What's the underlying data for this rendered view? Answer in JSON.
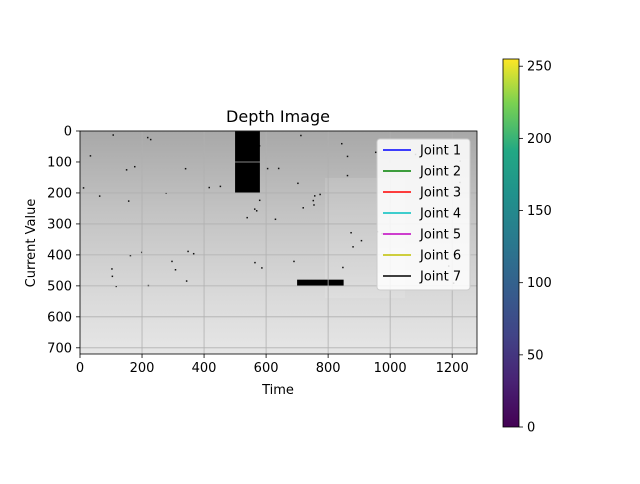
{
  "chart_data": {
    "type": "heatmap",
    "title": "Depth Image",
    "xlabel": "Time",
    "ylabel": "Current Value",
    "xlim": [
      0,
      1280
    ],
    "ylim": [
      720,
      0
    ],
    "xticks": [
      "0",
      "200",
      "400",
      "600",
      "800",
      "1000",
      "1200"
    ],
    "yticks": [
      "0",
      "100",
      "200",
      "300",
      "400",
      "500",
      "600",
      "700"
    ],
    "grid": true,
    "legend_position": "upper right",
    "series": [
      {
        "name": "Joint 1",
        "color": "#0000ff",
        "values": []
      },
      {
        "name": "Joint 2",
        "color": "#008000",
        "values": []
      },
      {
        "name": "Joint 3",
        "color": "#ff0000",
        "values": []
      },
      {
        "name": "Joint 4",
        "color": "#00bfbf",
        "values": []
      },
      {
        "name": "Joint 5",
        "color": "#bf00bf",
        "values": []
      },
      {
        "name": "Joint 6",
        "color": "#bfbf00",
        "values": []
      },
      {
        "name": "Joint 7",
        "color": "#000000",
        "values": []
      }
    ],
    "colorbar": {
      "colormap": "viridis",
      "range": [
        0,
        255
      ],
      "ticks": [
        "0",
        "50",
        "100",
        "150",
        "200",
        "250"
      ]
    },
    "image": {
      "colormap": "gray",
      "background_range": [
        "#a6a6a6",
        "#e6e6e6"
      ],
      "dark_regions": [
        {
          "x_range": [
            500,
            580
          ],
          "y_range": [
            0,
            200
          ]
        },
        {
          "x_range": [
            700,
            850
          ],
          "y_range": [
            480,
            500
          ]
        }
      ]
    }
  }
}
